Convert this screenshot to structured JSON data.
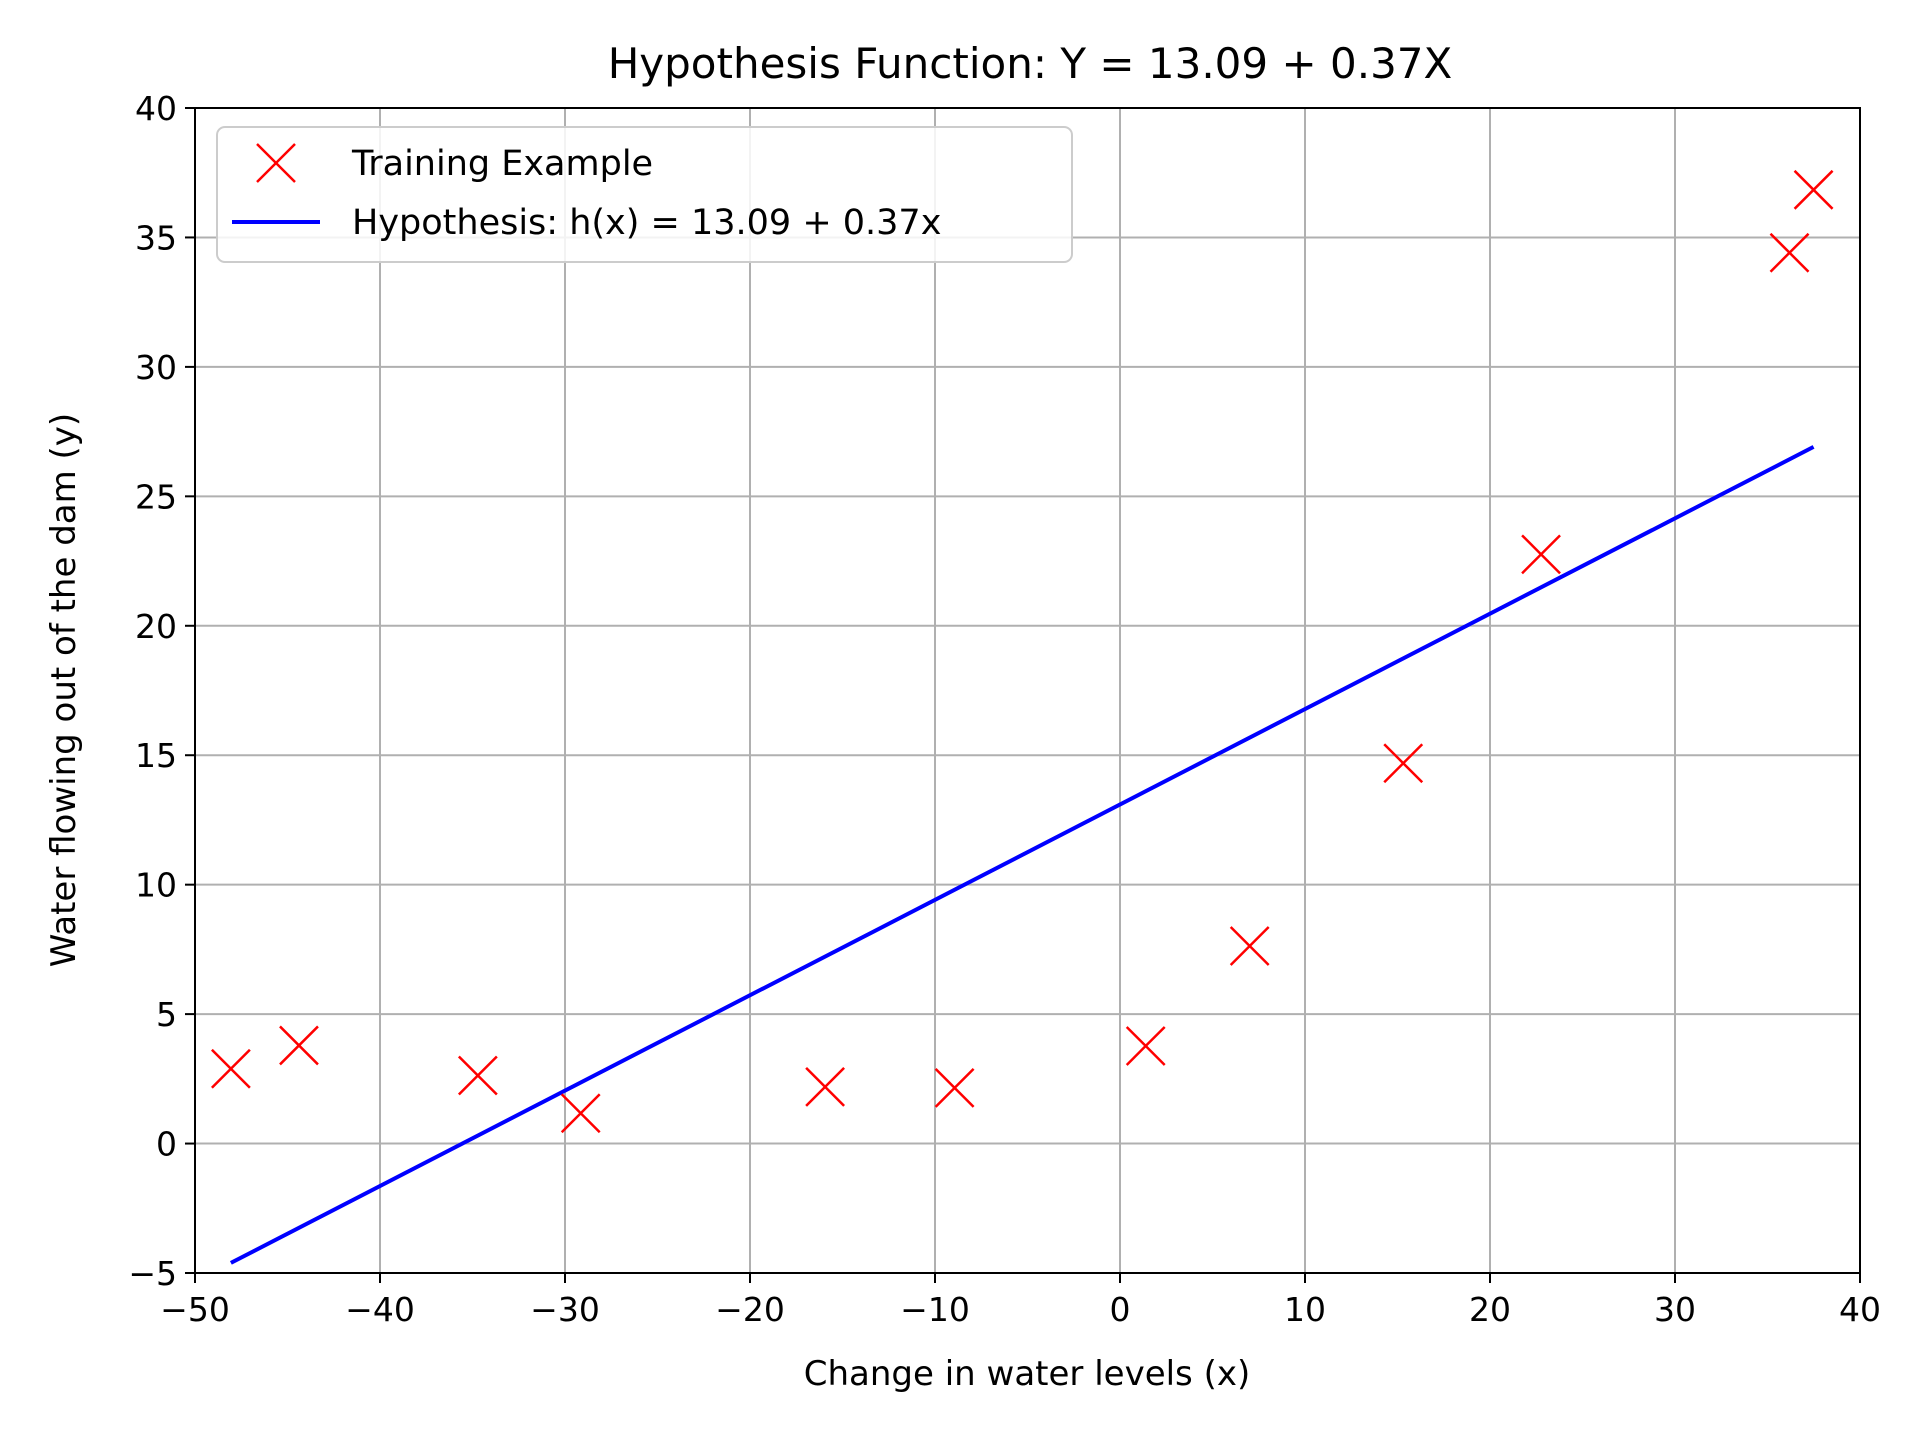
{
  "chart_data": {
    "type": "scatter",
    "title": "Hypothesis Function: Y = 13.09 + 0.37X",
    "xlabel": "Change in water levels (x)",
    "ylabel": "Water flowing out of the dam (y)",
    "xlim": [
      -50,
      40
    ],
    "ylim": [
      -5,
      40
    ],
    "x_ticks": [
      -50,
      -40,
      -30,
      -20,
      -10,
      0,
      10,
      20,
      30,
      40
    ],
    "y_ticks": [
      -5,
      0,
      5,
      10,
      15,
      20,
      25,
      30,
      35,
      40
    ],
    "x_tick_labels": [
      "−50",
      "−40",
      "−30",
      "−20",
      "−10",
      "0",
      "10",
      "20",
      "30",
      "40"
    ],
    "y_tick_labels": [
      "−5",
      "0",
      "5",
      "10",
      "15",
      "20",
      "25",
      "30",
      "35",
      "40"
    ],
    "grid": true,
    "legend_position": "top-left",
    "series": [
      {
        "name": "Training Example",
        "kind": "scatter",
        "marker": "x",
        "color": "#ff0000",
        "points": [
          {
            "x": -48.06,
            "y": 2.89
          },
          {
            "x": -44.38,
            "y": 3.79
          },
          {
            "x": -34.71,
            "y": 2.63
          },
          {
            "x": -29.15,
            "y": 1.17
          },
          {
            "x": -15.94,
            "y": 2.19
          },
          {
            "x": -8.94,
            "y": 2.15
          },
          {
            "x": 1.39,
            "y": 3.77
          },
          {
            "x": 7.01,
            "y": 7.63
          },
          {
            "x": 15.31,
            "y": 14.69
          },
          {
            "x": 22.76,
            "y": 22.76
          },
          {
            "x": 36.19,
            "y": 34.41
          },
          {
            "x": 37.49,
            "y": 36.84
          }
        ]
      },
      {
        "name": "Hypothesis: h(x) = 13.09 + 0.37x",
        "kind": "line",
        "color": "#0000ff",
        "points": [
          {
            "x": -48.06,
            "y": -4.61
          },
          {
            "x": 37.49,
            "y": 26.91
          }
        ]
      }
    ]
  }
}
